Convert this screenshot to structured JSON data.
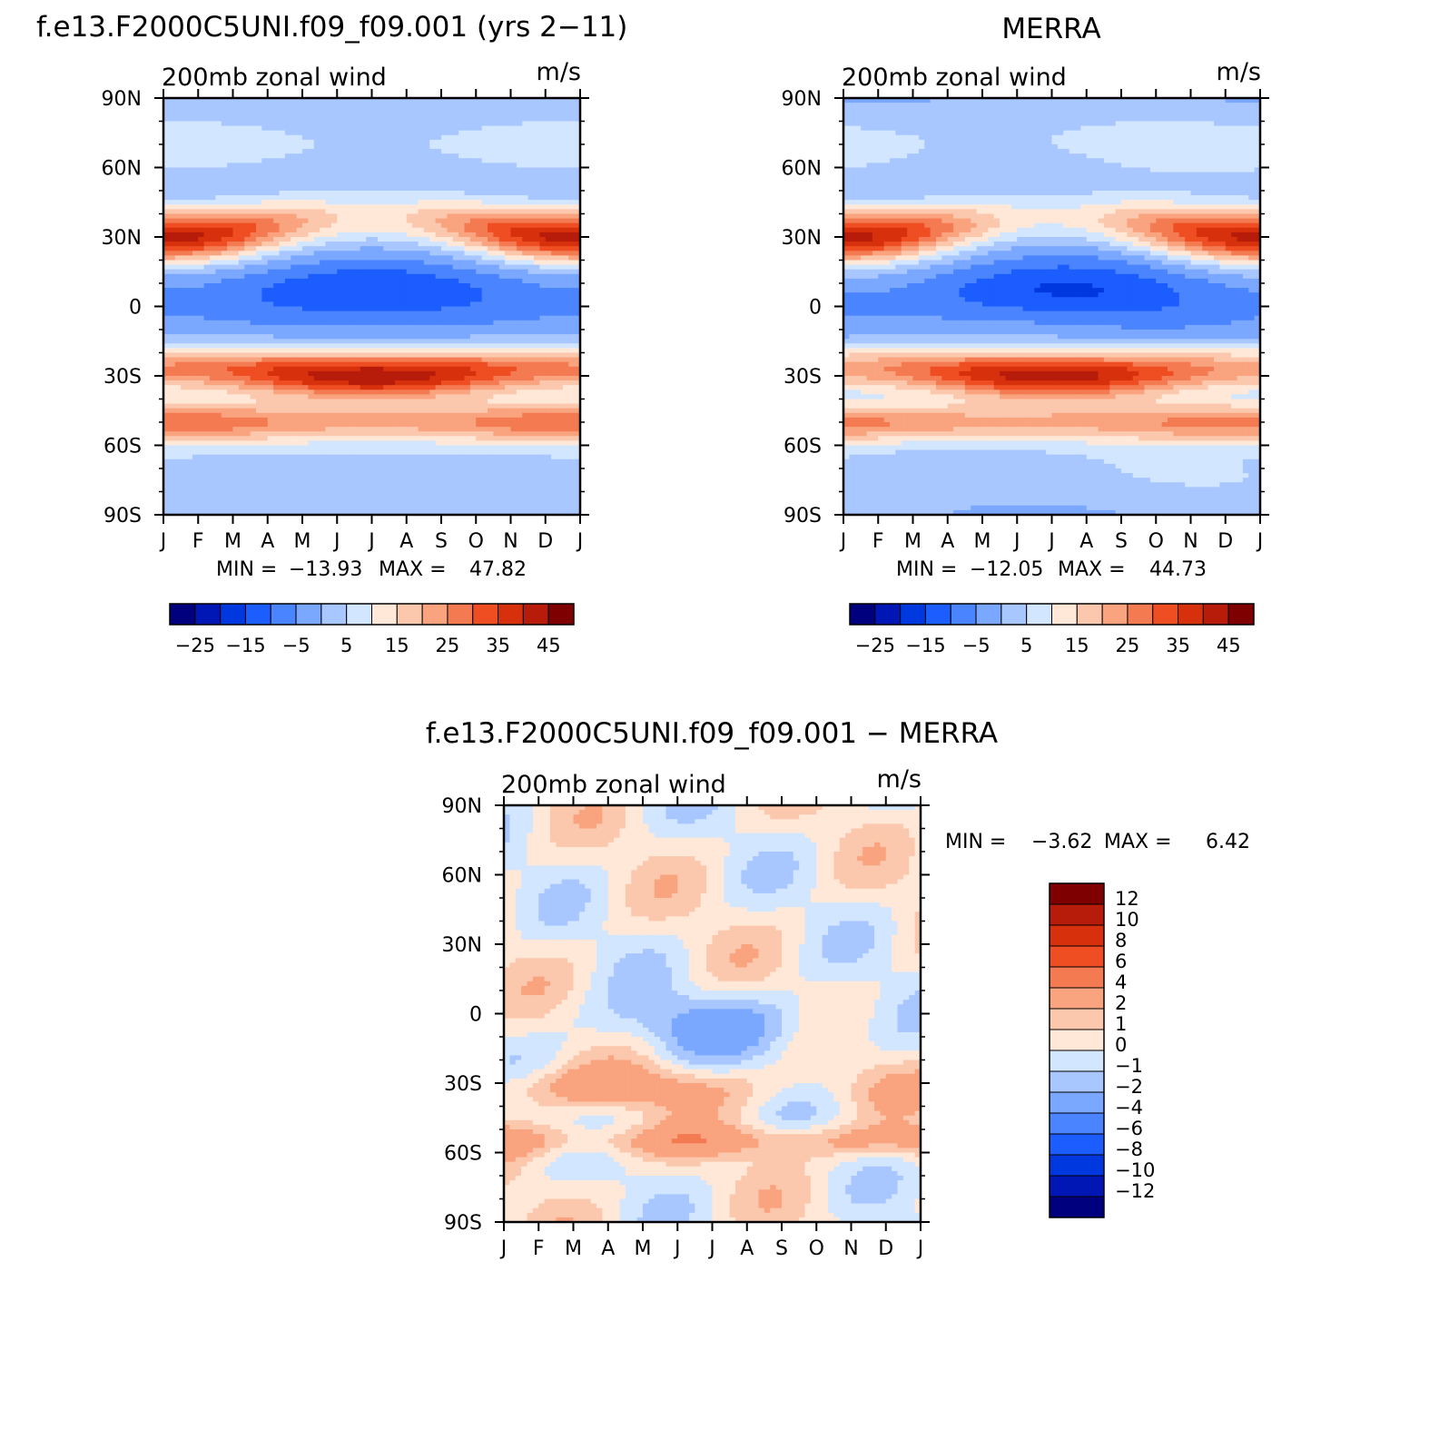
{
  "figure": {
    "panel_left_title": "f.e13.F2000C5UNI.f09_f09.001 (yrs 2−11)",
    "panel_right_title": "MERRA",
    "panel_diff_title": "f.e13.F2000C5UNI.f09_f09.001 − MERRA"
  },
  "chart_data": [
    {
      "type": "heatmap",
      "panel": "model",
      "title": "f.e13.F2000C5UNI.f09_f09.001 (yrs 2−11)",
      "left_label": "200mb zonal wind",
      "right_label": "m/s",
      "x_tick_labels": [
        "J",
        "F",
        "M",
        "A",
        "M",
        "J",
        "J",
        "A",
        "S",
        "O",
        "N",
        "D",
        "J"
      ],
      "y_tick_labels": [
        "90N",
        "60N",
        "30N",
        "0",
        "30S",
        "60S",
        "90S"
      ],
      "min_label": "MIN =",
      "min_value": "−13.93",
      "max_label": "MAX =",
      "max_value": "47.82",
      "jets": [
        {
          "lat": 30,
          "month": 0.0,
          "value": 45
        },
        {
          "lat": 30,
          "month": 12.0,
          "value": 43
        },
        {
          "lat": 0,
          "month": 6.5,
          "value": -12
        },
        {
          "lat": -30,
          "month": 6.5,
          "value": 46
        },
        {
          "lat": -50,
          "month": 0.0,
          "value": 33
        }
      ],
      "colorbar": {
        "levels": [
          -30,
          -25,
          -20,
          -15,
          -10,
          -5,
          0,
          5,
          10,
          15,
          20,
          25,
          30,
          35,
          40,
          45,
          50
        ],
        "tick_labels": [
          "−25",
          "−15",
          "−5",
          "5",
          "15",
          "25",
          "35",
          "45"
        ]
      }
    },
    {
      "type": "heatmap",
      "panel": "obs",
      "title": "MERRA",
      "left_label": "200mb zonal wind",
      "right_label": "m/s",
      "x_tick_labels": [
        "J",
        "F",
        "M",
        "A",
        "M",
        "J",
        "J",
        "A",
        "S",
        "O",
        "N",
        "D",
        "J"
      ],
      "y_tick_labels": [
        "90N",
        "60N",
        "30N",
        "0",
        "30S",
        "60S",
        "90S"
      ],
      "min_label": "MIN =",
      "min_value": "−12.05",
      "max_label": "MAX =",
      "max_value": "44.73",
      "jets": [
        {
          "lat": 30,
          "month": 0.0,
          "value": 42
        },
        {
          "lat": 30,
          "month": 12.0,
          "value": 40
        },
        {
          "lat": 5,
          "month": 7.0,
          "value": -10
        },
        {
          "lat": -30,
          "month": 6.5,
          "value": 44
        },
        {
          "lat": -50,
          "month": 0.0,
          "value": 30
        }
      ],
      "colorbar": {
        "levels": [
          -30,
          -25,
          -20,
          -15,
          -10,
          -5,
          0,
          5,
          10,
          15,
          20,
          25,
          30,
          35,
          40,
          45,
          50
        ],
        "tick_labels": [
          "−25",
          "−15",
          "−5",
          "5",
          "15",
          "25",
          "35",
          "45"
        ]
      }
    },
    {
      "type": "heatmap",
      "panel": "difference",
      "title": "f.e13.F2000C5UNI.f09_f09.001 − MERRA",
      "left_label": "200mb zonal wind",
      "right_label": "m/s",
      "x_tick_labels": [
        "J",
        "F",
        "M",
        "A",
        "M",
        "J",
        "J",
        "A",
        "S",
        "O",
        "N",
        "D",
        "J"
      ],
      "y_tick_labels": [
        "90N",
        "60N",
        "30N",
        "0",
        "30S",
        "60S",
        "90S"
      ],
      "min_label": "MIN =",
      "min_value": "−3.62",
      "max_label": "MAX =",
      "max_value": "6.42",
      "colorbar": {
        "levels": [
          -12,
          -10,
          -8,
          -6,
          -4,
          -2,
          -1,
          0,
          1,
          2,
          4,
          6,
          8,
          10,
          12
        ],
        "tick_labels": [
          "12",
          "10",
          "8",
          "6",
          "4",
          "2",
          "1",
          "0",
          "−1",
          "−2",
          "−4",
          "−6",
          "−8",
          "−10",
          "−12"
        ]
      }
    }
  ],
  "colors": {
    "palette": [
      "#00007f",
      "#0016b5",
      "#0038e0",
      "#1c5dff",
      "#4a84ff",
      "#7aa7ff",
      "#a8c6ff",
      "#d3e6ff",
      "#ffe8d8",
      "#fcc8ad",
      "#f9a37f",
      "#f47a52",
      "#ef4d22",
      "#d7300c",
      "#b71c0a",
      "#7f0000"
    ],
    "diff_palette": [
      "#00007f",
      "#0016b5",
      "#0038e0",
      "#1c5dff",
      "#4a84ff",
      "#7aa7ff",
      "#a8c6ff",
      "#d3e6ff",
      "#ffe8d8",
      "#fcc8ad",
      "#f9a37f",
      "#f47a52",
      "#ef4d22",
      "#d7300c",
      "#b71c0a",
      "#7f0000"
    ]
  }
}
